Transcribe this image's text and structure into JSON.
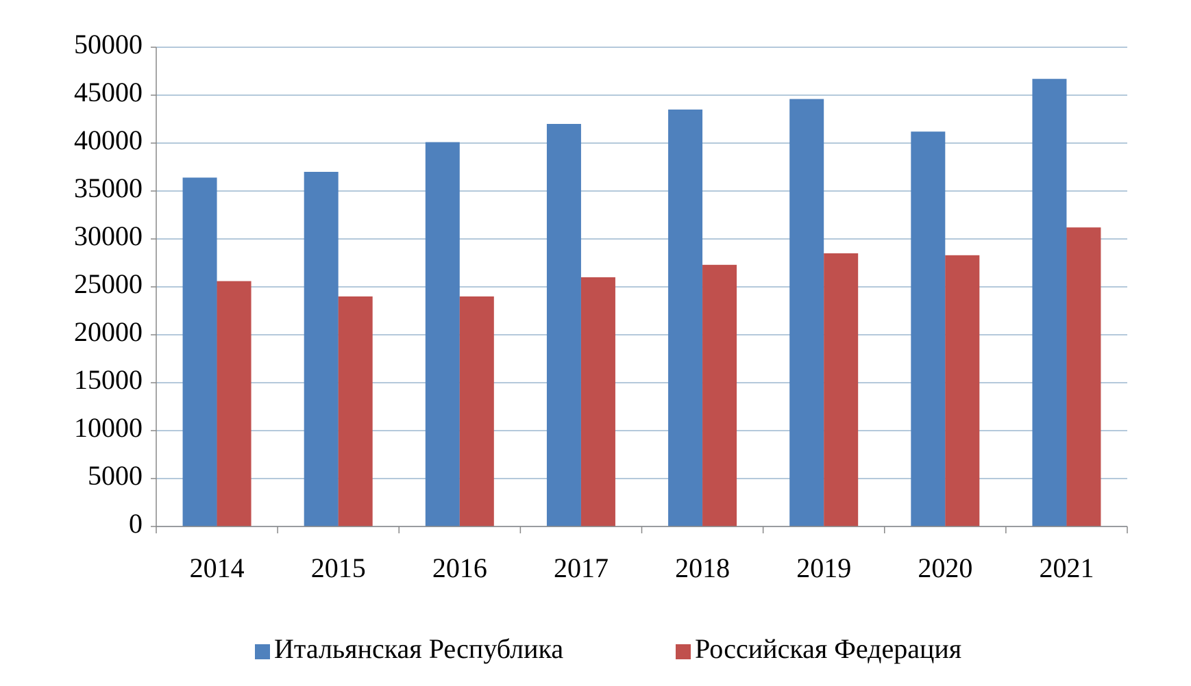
{
  "chart_data": {
    "type": "bar",
    "categories": [
      "2014",
      "2015",
      "2016",
      "2017",
      "2018",
      "2019",
      "2020",
      "2021"
    ],
    "series": [
      {
        "name": "Итальянская Республика",
        "color": "#4f81bd",
        "values": [
          36400,
          37000,
          40100,
          42000,
          43500,
          44600,
          41200,
          46700
        ]
      },
      {
        "name": "Российская Федерация",
        "color": "#c0504d",
        "values": [
          25600,
          24000,
          24000,
          26000,
          27300,
          28500,
          28300,
          31200
        ]
      }
    ],
    "ylim": [
      0,
      50000
    ],
    "yticks": [
      0,
      5000,
      10000,
      15000,
      20000,
      25000,
      30000,
      35000,
      40000,
      45000,
      50000
    ],
    "grid": true,
    "legend": "bottom"
  }
}
